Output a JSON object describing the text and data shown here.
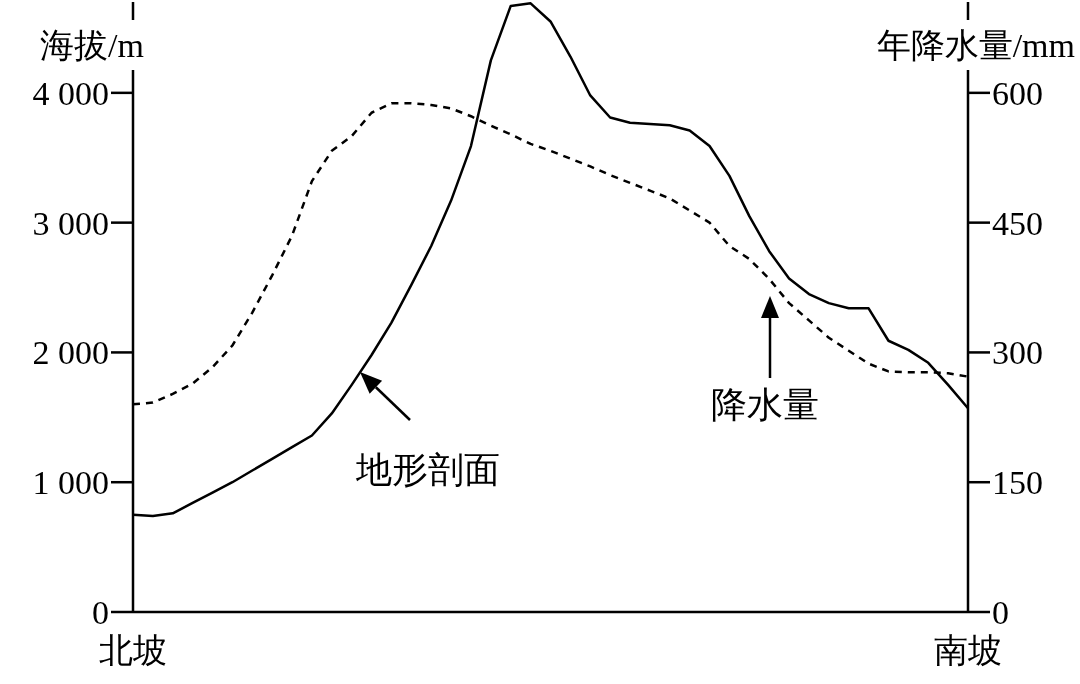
{
  "chart_data": {
    "type": "line",
    "ylabel": "海拔/m",
    "y2label": "年降水量/mm",
    "categories": [
      "北坡",
      null,
      null,
      null,
      null,
      null,
      null,
      null,
      null,
      null,
      null,
      null,
      null,
      null,
      null,
      null,
      null,
      null,
      null,
      null,
      null,
      null,
      null,
      null,
      null,
      null,
      null,
      null,
      null,
      null,
      null,
      null,
      null,
      null,
      null,
      null,
      null,
      null,
      null,
      null,
      null,
      null,
      "南坡"
    ],
    "series": [
      {
        "color": "#000000",
        "line_style": "solid",
        "values": [
          750,
          740,
          760,
          840,
          920,
          1000,
          1090,
          1180,
          1270,
          1360,
          1530,
          1750,
          1980,
          2230,
          2520,
          2820,
          3170,
          3590,
          4250,
          4670,
          4690,
          4550,
          4280,
          3980,
          3810,
          3770,
          3760,
          3750,
          3710,
          3590,
          3360,
          3050,
          2780,
          2570,
          2450,
          2380,
          2340,
          2340,
          2090,
          2020,
          1920,
          1750,
          1570
        ]
      },
      {
        "color": "#000000",
        "line_style": "dashed",
        "axis": "y2",
        "values": [
          240,
          242,
          252,
          264,
          283,
          308,
          346,
          389,
          435,
          498,
          533,
          550,
          577,
          588,
          588,
          586,
          582,
          573,
          562,
          552,
          541,
          533,
          524,
          515,
          505,
          496,
          487,
          478,
          464,
          450,
          423,
          408,
          385,
          357,
          337,
          317,
          302,
          287,
          278,
          277,
          277,
          276,
          272
        ]
      }
    ],
    "ylim": [
      0,
      4700
    ],
    "yticks": [
      0,
      {
        "value": 1000,
        "label": "1 000"
      },
      {
        "value": 2000,
        "label": "2 000"
      },
      {
        "value": 3000,
        "label": "3 000"
      },
      {
        "value": 4000,
        "label": "4 000"
      }
    ],
    "y2lim": [
      0,
      705
    ],
    "y2ticks": [
      0,
      150,
      300,
      450,
      600
    ],
    "annotations": [
      "地形剖面",
      "降水量"
    ]
  }
}
